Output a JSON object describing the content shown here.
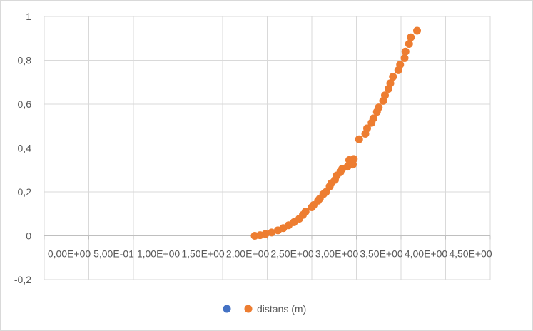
{
  "chart_data": {
    "type": "scatter",
    "title": "",
    "xlabel": "",
    "ylabel": "",
    "xlim": [
      0,
      5
    ],
    "ylim": [
      -0.2,
      1
    ],
    "x_tick_labels": [
      "0,00E+00",
      "5,00E-01",
      "1,00E+00",
      "1,50E+00",
      "2,00E+00",
      "2,50E+00",
      "3,00E+00",
      "3,50E+00",
      "4,00E+00",
      "4,50E+00"
    ],
    "y_tick_labels": [
      "-0,2",
      "0",
      "0,2",
      "0,4",
      "0,6",
      "0,8",
      "1"
    ],
    "y_ticks": [
      -0.2,
      0,
      0.2,
      0.4,
      0.6,
      0.8,
      1
    ],
    "x_ticks": [
      0,
      0.5,
      1,
      1.5,
      2,
      2.5,
      3,
      3.5,
      4,
      4.5
    ],
    "grid": true,
    "legend_position": "bottom",
    "series": [
      {
        "name": "",
        "color": "#4472C4",
        "points": []
      },
      {
        "name": "distans (m)",
        "color": "#ED7D31",
        "points": [
          [
            2.36,
            0.0
          ],
          [
            2.42,
            0.003
          ],
          [
            2.48,
            0.008
          ],
          [
            2.55,
            0.015
          ],
          [
            2.62,
            0.025
          ],
          [
            2.68,
            0.035
          ],
          [
            2.74,
            0.048
          ],
          [
            2.8,
            0.062
          ],
          [
            2.86,
            0.078
          ],
          [
            2.9,
            0.095
          ],
          [
            2.93,
            0.11
          ],
          [
            3.0,
            0.13
          ],
          [
            3.02,
            0.14
          ],
          [
            3.07,
            0.16
          ],
          [
            3.09,
            0.17
          ],
          [
            3.13,
            0.19
          ],
          [
            3.16,
            0.2
          ],
          [
            3.2,
            0.225
          ],
          [
            3.22,
            0.24
          ],
          [
            3.26,
            0.255
          ],
          [
            3.28,
            0.275
          ],
          [
            3.32,
            0.29
          ],
          [
            3.34,
            0.305
          ],
          [
            3.4,
            0.315
          ],
          [
            3.42,
            0.345
          ],
          [
            3.46,
            0.325
          ],
          [
            3.47,
            0.35
          ],
          [
            3.53,
            0.44
          ],
          [
            3.6,
            0.465
          ],
          [
            3.62,
            0.49
          ],
          [
            3.67,
            0.515
          ],
          [
            3.69,
            0.535
          ],
          [
            3.73,
            0.565
          ],
          [
            3.75,
            0.585
          ],
          [
            3.8,
            0.615
          ],
          [
            3.82,
            0.64
          ],
          [
            3.86,
            0.67
          ],
          [
            3.88,
            0.695
          ],
          [
            3.91,
            0.725
          ],
          [
            3.97,
            0.755
          ],
          [
            3.99,
            0.78
          ],
          [
            4.04,
            0.81
          ],
          [
            4.05,
            0.84
          ],
          [
            4.09,
            0.875
          ],
          [
            4.11,
            0.905
          ],
          [
            4.18,
            0.935
          ]
        ]
      }
    ]
  }
}
